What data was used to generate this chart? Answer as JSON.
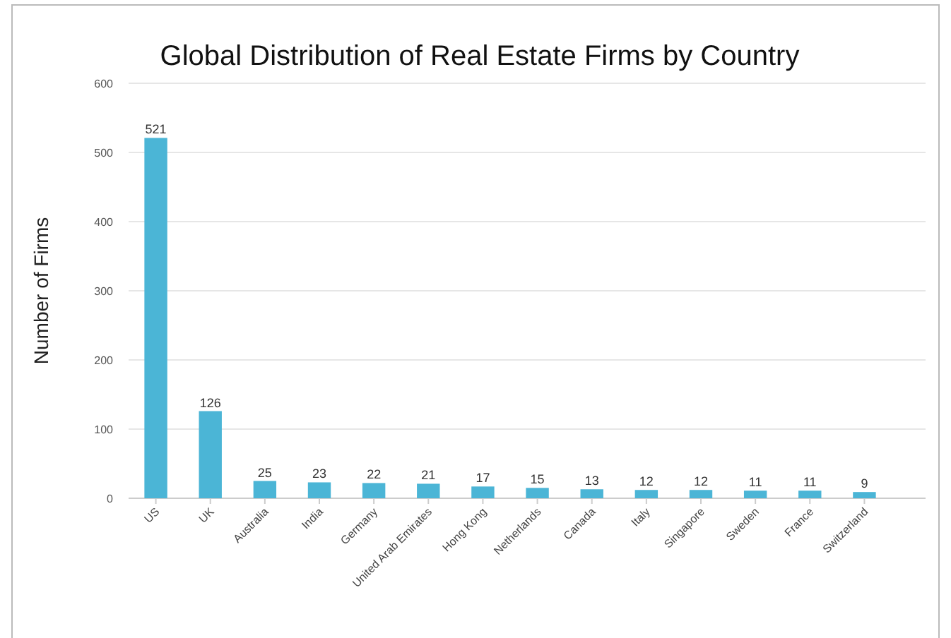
{
  "chart_data": {
    "type": "bar",
    "title": "Global Distribution of Real Estate Firms by Country",
    "ylabel": "Number of Firms",
    "categories": [
      "US",
      "UK",
      "Australia",
      "India",
      "Germany",
      "United Arab Emirates",
      "Hong Kong",
      "Netherlands",
      "Canada",
      "Italy",
      "Singapore",
      "Sweden",
      "France",
      "Switzerland"
    ],
    "values": [
      521,
      126,
      25,
      23,
      22,
      21,
      17,
      15,
      13,
      12,
      12,
      11,
      11,
      9
    ],
    "color": "#4bb5d6",
    "ylim": [
      0,
      600
    ],
    "yticks": [
      0,
      100,
      200,
      300,
      400,
      500,
      600
    ],
    "grid": "y",
    "data_labels": true
  }
}
